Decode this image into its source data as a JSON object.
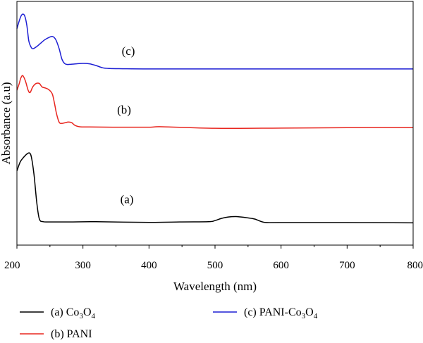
{
  "chart_data": {
    "type": "line",
    "xlabel": "Wavelength (nm)",
    "ylabel": "Absorbance (a.u)",
    "xlim": [
      200,
      800
    ],
    "xticks": [
      "200",
      "300",
      "400",
      "500",
      "600",
      "700",
      "800"
    ],
    "ylim": [
      0,
      1
    ],
    "y_ticks_labeled": false,
    "grid": false,
    "legend_position": "bottom",
    "series": [
      {
        "name": "(a) Co3O4",
        "legend_main": "(a) Co",
        "legend_sub1": "3",
        "legend_mid": "O",
        "legend_sub2": "4",
        "annotation": "(a)",
        "color": "#000000",
        "x": [
          200,
          205,
          210,
          215,
          219,
          222,
          226,
          230,
          234,
          240,
          250,
          280,
          320,
          400,
          450,
          490,
          500,
          510,
          520,
          532,
          545,
          560,
          575,
          600,
          700,
          800
        ],
        "y": [
          0.3,
          0.34,
          0.36,
          0.375,
          0.38,
          0.36,
          0.28,
          0.16,
          0.085,
          0.073,
          0.072,
          0.072,
          0.073,
          0.07,
          0.072,
          0.073,
          0.078,
          0.088,
          0.094,
          0.096,
          0.092,
          0.085,
          0.07,
          0.069,
          0.069,
          0.068
        ]
      },
      {
        "name": "(b) PANI",
        "legend_main": "(b) PANI",
        "annotation": "(b)",
        "color": "#e8261f",
        "x": [
          200,
          203,
          206,
          209,
          213,
          217,
          220,
          224,
          229,
          234,
          238,
          243,
          247,
          251,
          254,
          257,
          260,
          264,
          268,
          273,
          278,
          283,
          288,
          295,
          310,
          350,
          400,
          420,
          500,
          600,
          700,
          800
        ],
        "y": [
          0.66,
          0.685,
          0.715,
          0.725,
          0.7,
          0.66,
          0.65,
          0.675,
          0.69,
          0.69,
          0.675,
          0.67,
          0.665,
          0.655,
          0.64,
          0.6,
          0.555,
          0.517,
          0.512,
          0.515,
          0.518,
          0.515,
          0.503,
          0.497,
          0.496,
          0.495,
          0.495,
          0.497,
          0.49,
          0.491,
          0.493,
          0.493
        ]
      },
      {
        "name": "(c) PANI-Co3O4",
        "legend_main": "(c) PANI-Co",
        "legend_sub1": "3",
        "legend_mid": "O",
        "legend_sub2": "4",
        "annotation": "(c)",
        "color": "#1d1fd4",
        "x": [
          200,
          203,
          206,
          209,
          212,
          215,
          218,
          221,
          224,
          230,
          236,
          242,
          248,
          254,
          259,
          264,
          268,
          272,
          276,
          282,
          290,
          300,
          310,
          320,
          330,
          340,
          360,
          400,
          500,
          600,
          700,
          800
        ],
        "y": [
          0.935,
          0.965,
          0.99,
          1.0,
          0.99,
          0.95,
          0.88,
          0.855,
          0.845,
          0.855,
          0.87,
          0.885,
          0.895,
          0.9,
          0.885,
          0.845,
          0.8,
          0.78,
          0.775,
          0.776,
          0.778,
          0.78,
          0.778,
          0.77,
          0.76,
          0.757,
          0.756,
          0.755,
          0.755,
          0.755,
          0.755,
          0.755
        ]
      }
    ]
  }
}
